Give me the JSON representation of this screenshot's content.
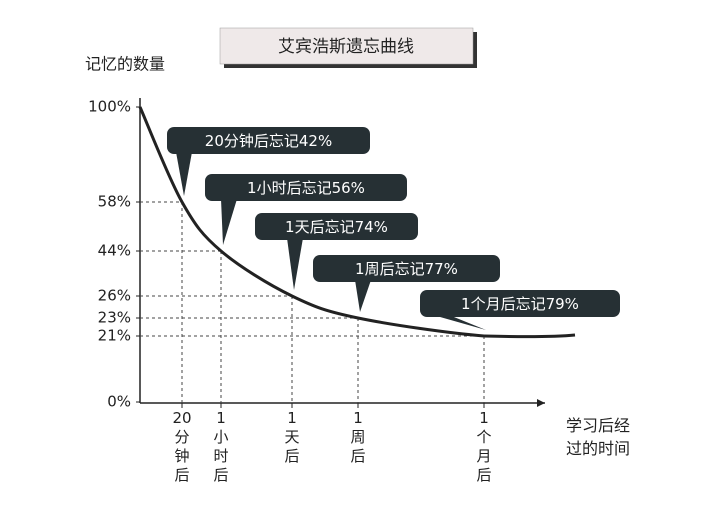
{
  "chart_data": {
    "type": "line",
    "title": "艾宾浩斯遗忘曲线",
    "y_label": "记忆的数量",
    "x_label": "学习后经过的时间",
    "categories": [
      null,
      "20分钟后",
      "1小时后",
      "1天后",
      "1周后",
      "1个月后"
    ],
    "series": [
      {
        "name": "记忆的数量",
        "color": "#222222",
        "values": [
          100,
          58,
          44,
          26,
          23,
          21
        ]
      }
    ],
    "ylim": [
      0,
      100
    ],
    "yticks": [
      {
        "value": 0,
        "label": "0%"
      },
      {
        "value": 21,
        "label": "21%"
      },
      {
        "value": 23,
        "label": "23%"
      },
      {
        "value": 26,
        "label": "26%"
      },
      {
        "value": 44,
        "label": "44%"
      },
      {
        "value": 58,
        "label": "58%"
      },
      {
        "value": 100,
        "label": "100%"
      }
    ],
    "annotations": [
      "20分钟后忘记42%",
      "1小时后忘记56%",
      "1天后忘记74%",
      "1周后忘记77%",
      "1个月后忘记79%"
    ],
    "guides": true
  }
}
